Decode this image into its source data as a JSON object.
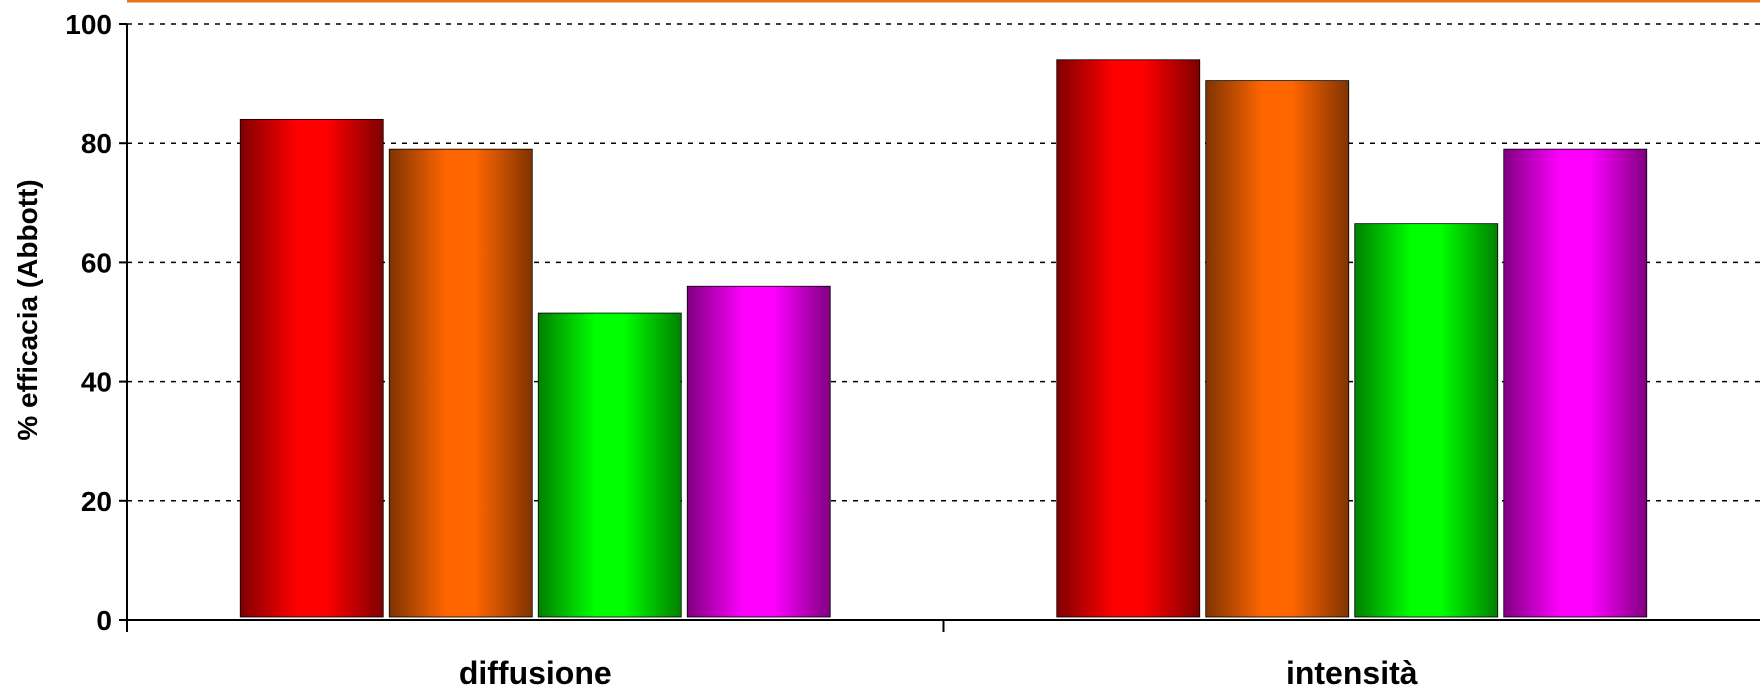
{
  "chart_data": {
    "type": "bar",
    "ylabel": "% efficacia (Abbott)",
    "ylim": [
      0,
      100
    ],
    "yticks": [
      0,
      20,
      40,
      60,
      80,
      100
    ],
    "grid": "horizontal dashed",
    "categories": [
      "diffusione",
      "intensità"
    ],
    "series": [
      {
        "color": "#ff0000",
        "values": [
          84,
          94
        ]
      },
      {
        "color": "#ff6600",
        "values": [
          79,
          90.5
        ]
      },
      {
        "color": "#00ff00",
        "values": [
          51.5,
          66.5
        ]
      },
      {
        "color": "#ff00ff",
        "values": [
          56,
          79
        ]
      }
    ],
    "top_line_color": "#e8731a"
  }
}
